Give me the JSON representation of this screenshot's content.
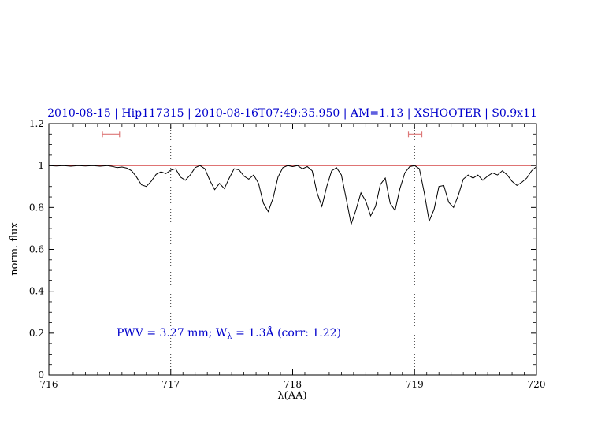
{
  "chart_data": {
    "type": "line",
    "title": "2010-08-15 | Hip117315 | 2010-08-16T07:49:35.950 | AM=1.13 | XSHOOTER | S0.9x11",
    "xlabel": "λ(AA)",
    "ylabel": "norm. flux",
    "xlim": [
      716,
      720
    ],
    "ylim": [
      0,
      1.2
    ],
    "grid": false,
    "legend": "none",
    "xticks": {
      "values": [
        716,
        717,
        718,
        719,
        720
      ],
      "labels": [
        "716",
        "717",
        "718",
        "719",
        "720"
      ],
      "minor_step": 0.1
    },
    "yticks": {
      "values": [
        0,
        0.2,
        0.4,
        0.6,
        0.8,
        1,
        1.2
      ],
      "labels": [
        "0",
        "0.2",
        "0.4",
        "0.6",
        "0.8",
        "1",
        "1.2"
      ],
      "minor_step": 0.05
    },
    "vlines": [
      717,
      719
    ],
    "continuum_y": 1.0,
    "colors": {
      "title": "#0000cc",
      "annotation": "#0000cc",
      "continuum": "#cc2222",
      "marker": "#dd7777",
      "spectrum": "#000000",
      "guide": "#000000"
    },
    "markers": [
      {
        "x1": 716.44,
        "x2": 716.58,
        "y": 1.15
      },
      {
        "x1": 718.95,
        "x2": 719.06,
        "y": 1.15
      }
    ],
    "annotation": {
      "text_before": "PWV = 3.27 mm; W",
      "sub": "λ",
      "text_after": " = 1.3Å (corr: 1.22)"
    },
    "series": [
      {
        "name": "spectrum",
        "color": "#000000",
        "x": [
          716.0,
          716.06,
          716.12,
          716.18,
          716.24,
          716.3,
          716.36,
          716.42,
          716.48,
          716.52,
          716.56,
          716.6,
          716.64,
          716.68,
          716.72,
          716.76,
          716.8,
          716.84,
          716.88,
          716.92,
          716.96,
          717.0,
          717.04,
          717.08,
          717.12,
          717.16,
          717.2,
          717.24,
          717.28,
          717.32,
          717.36,
          717.4,
          717.44,
          717.48,
          717.52,
          717.56,
          717.6,
          717.64,
          717.68,
          717.72,
          717.76,
          717.8,
          717.84,
          717.88,
          717.92,
          717.96,
          718.0,
          718.04,
          718.08,
          718.12,
          718.16,
          718.2,
          718.24,
          718.28,
          718.32,
          718.36,
          718.4,
          718.44,
          718.48,
          718.52,
          718.56,
          718.6,
          718.64,
          718.68,
          718.72,
          718.76,
          718.8,
          718.84,
          718.88,
          718.92,
          718.96,
          719.0,
          719.04,
          719.08,
          719.12,
          719.16,
          719.2,
          719.24,
          719.28,
          719.32,
          719.36,
          719.4,
          719.44,
          719.48,
          719.52,
          719.56,
          719.6,
          719.64,
          719.68,
          719.72,
          719.76,
          719.8,
          719.84,
          719.88,
          719.92,
          719.96,
          720.0
        ],
        "y": [
          1.0,
          0.998,
          1.0,
          0.997,
          1.0,
          0.998,
          1.0,
          0.997,
          1.0,
          0.996,
          0.99,
          0.993,
          0.988,
          0.975,
          0.945,
          0.908,
          0.9,
          0.925,
          0.958,
          0.97,
          0.962,
          0.978,
          0.985,
          0.945,
          0.93,
          0.955,
          0.99,
          1.0,
          0.985,
          0.93,
          0.885,
          0.915,
          0.89,
          0.94,
          0.985,
          0.98,
          0.95,
          0.935,
          0.955,
          0.915,
          0.82,
          0.78,
          0.845,
          0.945,
          0.99,
          1.0,
          0.995,
          1.0,
          0.985,
          0.995,
          0.975,
          0.87,
          0.805,
          0.9,
          0.975,
          0.99,
          0.955,
          0.84,
          0.72,
          0.79,
          0.87,
          0.83,
          0.76,
          0.805,
          0.91,
          0.94,
          0.82,
          0.785,
          0.89,
          0.965,
          0.995,
          1.0,
          0.985,
          0.87,
          0.735,
          0.79,
          0.9,
          0.905,
          0.825,
          0.8,
          0.86,
          0.935,
          0.955,
          0.94,
          0.955,
          0.93,
          0.95,
          0.965,
          0.955,
          0.975,
          0.955,
          0.925,
          0.905,
          0.92,
          0.94,
          0.975,
          0.995
        ]
      }
    ]
  }
}
